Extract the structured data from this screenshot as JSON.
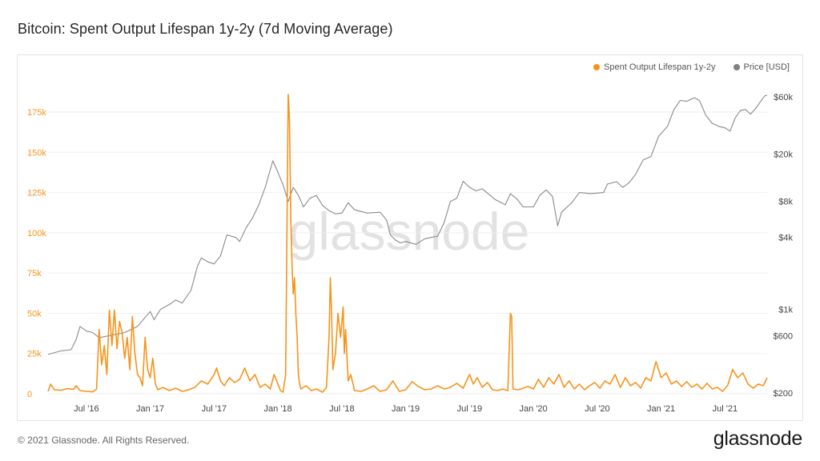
{
  "header": {
    "title": "Bitcoin: Spent Output Lifespan 1y-2y (7d Moving Average)"
  },
  "footer": {
    "copyright": "© 2021 Glassnode. All Rights Reserved.",
    "logo": "glassnode"
  },
  "watermark": "glassnode",
  "chart_data": {
    "type": "line",
    "title": "Bitcoin: Spent Output Lifespan 1y-2y (7d Moving Average)",
    "x_range": [
      2016.2,
      2021.83
    ],
    "x_ticks": [
      {
        "label": "Jul '16",
        "x": 2016.5
      },
      {
        "label": "Jan '17",
        "x": 2017.0
      },
      {
        "label": "Jul '17",
        "x": 2017.5
      },
      {
        "label": "Jan '18",
        "x": 2018.0
      },
      {
        "label": "Jul '18",
        "x": 2018.5
      },
      {
        "label": "Jan '19",
        "x": 2019.0
      },
      {
        "label": "Jul '19",
        "x": 2019.5
      },
      {
        "label": "Jan '20",
        "x": 2020.0
      },
      {
        "label": "Jul '20",
        "x": 2020.5
      },
      {
        "label": "Jan '21",
        "x": 2021.0
      },
      {
        "label": "Jul '21",
        "x": 2021.5
      }
    ],
    "left_axis": {
      "ylim": [
        0,
        175000
      ],
      "ticks": [
        {
          "label": "0",
          "v": 0
        },
        {
          "label": "25k",
          "v": 25000
        },
        {
          "label": "50k",
          "v": 50000
        },
        {
          "label": "75k",
          "v": 75000
        },
        {
          "label": "100k",
          "v": 100000
        },
        {
          "label": "125k",
          "v": 125000
        },
        {
          "label": "150k",
          "v": 150000
        },
        {
          "label": "175k",
          "v": 175000
        }
      ],
      "color": "#f7931a"
    },
    "right_axis": {
      "scale": "log",
      "ylim": [
        200,
        60000
      ],
      "ticks": [
        {
          "label": "$200",
          "v": 200
        },
        {
          "label": "$600",
          "v": 600
        },
        {
          "label": "$1k",
          "v": 1000
        },
        {
          "label": "$4k",
          "v": 4000
        },
        {
          "label": "$8k",
          "v": 8000
        },
        {
          "label": "$20k",
          "v": 20000
        },
        {
          "label": "$60k",
          "v": 60000
        }
      ],
      "color": "#555555"
    },
    "series": [
      {
        "name": "Spent Output Lifespan 1y-2y",
        "axis": "left",
        "color": "#f7931a",
        "points": [
          [
            2016.2,
            1500
          ],
          [
            2016.22,
            6000
          ],
          [
            2016.25,
            2500
          ],
          [
            2016.3,
            2200
          ],
          [
            2016.35,
            3200
          ],
          [
            2016.4,
            2800
          ],
          [
            2016.42,
            5000
          ],
          [
            2016.45,
            2000
          ],
          [
            2016.5,
            1500
          ],
          [
            2016.55,
            1200
          ],
          [
            2016.58,
            3000
          ],
          [
            2016.6,
            40000
          ],
          [
            2016.62,
            18000
          ],
          [
            2016.64,
            30000
          ],
          [
            2016.66,
            12000
          ],
          [
            2016.68,
            52000
          ],
          [
            2016.7,
            30000
          ],
          [
            2016.72,
            52000
          ],
          [
            2016.74,
            28000
          ],
          [
            2016.76,
            45000
          ],
          [
            2016.78,
            38000
          ],
          [
            2016.8,
            22000
          ],
          [
            2016.82,
            35000
          ],
          [
            2016.84,
            15000
          ],
          [
            2016.86,
            48000
          ],
          [
            2016.88,
            25000
          ],
          [
            2016.9,
            12000
          ],
          [
            2016.92,
            10000
          ],
          [
            2016.94,
            5000
          ],
          [
            2016.96,
            35000
          ],
          [
            2016.98,
            15000
          ],
          [
            2017.0,
            10000
          ],
          [
            2017.02,
            22000
          ],
          [
            2017.04,
            6000
          ],
          [
            2017.06,
            2500
          ],
          [
            2017.1,
            4000
          ],
          [
            2017.15,
            2000
          ],
          [
            2017.2,
            3500
          ],
          [
            2017.25,
            1500
          ],
          [
            2017.3,
            2500
          ],
          [
            2017.35,
            4000
          ],
          [
            2017.4,
            8000
          ],
          [
            2017.45,
            6000
          ],
          [
            2017.5,
            12000
          ],
          [
            2017.52,
            16000
          ],
          [
            2017.55,
            8000
          ],
          [
            2017.58,
            5000
          ],
          [
            2017.62,
            10000
          ],
          [
            2017.66,
            7000
          ],
          [
            2017.7,
            9000
          ],
          [
            2017.74,
            16000
          ],
          [
            2017.78,
            8000
          ],
          [
            2017.82,
            12000
          ],
          [
            2017.86,
            4000
          ],
          [
            2017.9,
            6000
          ],
          [
            2017.94,
            3000
          ],
          [
            2017.97,
            12000
          ],
          [
            2018.0,
            6000
          ],
          [
            2018.02,
            2000
          ],
          [
            2018.04,
            1000
          ],
          [
            2018.06,
            12000
          ],
          [
            2018.08,
            186000
          ],
          [
            2018.09,
            170000
          ],
          [
            2018.1,
            110000
          ],
          [
            2018.11,
            80000
          ],
          [
            2018.12,
            62000
          ],
          [
            2018.13,
            72000
          ],
          [
            2018.14,
            50000
          ],
          [
            2018.15,
            36000
          ],
          [
            2018.16,
            12000
          ],
          [
            2018.17,
            6000
          ],
          [
            2018.18,
            3000
          ],
          [
            2018.22,
            5000
          ],
          [
            2018.26,
            2000
          ],
          [
            2018.3,
            3000
          ],
          [
            2018.35,
            1000
          ],
          [
            2018.38,
            4000
          ],
          [
            2018.4,
            35000
          ],
          [
            2018.41,
            72000
          ],
          [
            2018.42,
            50000
          ],
          [
            2018.43,
            15000
          ],
          [
            2018.45,
            25000
          ],
          [
            2018.47,
            50000
          ],
          [
            2018.49,
            35000
          ],
          [
            2018.51,
            54000
          ],
          [
            2018.52,
            25000
          ],
          [
            2018.53,
            40000
          ],
          [
            2018.55,
            8000
          ],
          [
            2018.57,
            12000
          ],
          [
            2018.6,
            2000
          ],
          [
            2018.65,
            1500
          ],
          [
            2018.7,
            3000
          ],
          [
            2018.75,
            5000
          ],
          [
            2018.8,
            1500
          ],
          [
            2018.85,
            2500
          ],
          [
            2018.9,
            8000
          ],
          [
            2018.95,
            1500
          ],
          [
            2019.0,
            2500
          ],
          [
            2019.05,
            7500
          ],
          [
            2019.1,
            4500
          ],
          [
            2019.15,
            2500
          ],
          [
            2019.2,
            3000
          ],
          [
            2019.25,
            5000
          ],
          [
            2019.3,
            3000
          ],
          [
            2019.35,
            4000
          ],
          [
            2019.4,
            6500
          ],
          [
            2019.45,
            3500
          ],
          [
            2019.5,
            12000
          ],
          [
            2019.53,
            6000
          ],
          [
            2019.56,
            10000
          ],
          [
            2019.6,
            4000
          ],
          [
            2019.64,
            7000
          ],
          [
            2019.68,
            2500
          ],
          [
            2019.72,
            2000
          ],
          [
            2019.76,
            3000
          ],
          [
            2019.8,
            2000
          ],
          [
            2019.82,
            50000
          ],
          [
            2019.83,
            48000
          ],
          [
            2019.84,
            3000
          ],
          [
            2019.88,
            2500
          ],
          [
            2019.92,
            3500
          ],
          [
            2019.96,
            4500
          ],
          [
            2020.0,
            3000
          ],
          [
            2020.04,
            9000
          ],
          [
            2020.08,
            4000
          ],
          [
            2020.12,
            10000
          ],
          [
            2020.16,
            6000
          ],
          [
            2020.2,
            12000
          ],
          [
            2020.24,
            4000
          ],
          [
            2020.28,
            8000
          ],
          [
            2020.32,
            3000
          ],
          [
            2020.36,
            6000
          ],
          [
            2020.4,
            2500
          ],
          [
            2020.44,
            5000
          ],
          [
            2020.48,
            7000
          ],
          [
            2020.52,
            3500
          ],
          [
            2020.56,
            8000
          ],
          [
            2020.6,
            6000
          ],
          [
            2020.64,
            12000
          ],
          [
            2020.68,
            4000
          ],
          [
            2020.72,
            10000
          ],
          [
            2020.76,
            5000
          ],
          [
            2020.8,
            7000
          ],
          [
            2020.84,
            3500
          ],
          [
            2020.88,
            10000
          ],
          [
            2020.92,
            8000
          ],
          [
            2020.96,
            20000
          ],
          [
            2021.0,
            10000
          ],
          [
            2021.04,
            13000
          ],
          [
            2021.08,
            6000
          ],
          [
            2021.12,
            8000
          ],
          [
            2021.16,
            4500
          ],
          [
            2021.2,
            7500
          ],
          [
            2021.24,
            4000
          ],
          [
            2021.28,
            6000
          ],
          [
            2021.32,
            3000
          ],
          [
            2021.36,
            6500
          ],
          [
            2021.4,
            3000
          ],
          [
            2021.44,
            4000
          ],
          [
            2021.48,
            1500
          ],
          [
            2021.52,
            5000
          ],
          [
            2021.56,
            15000
          ],
          [
            2021.6,
            10000
          ],
          [
            2021.64,
            13000
          ],
          [
            2021.68,
            6000
          ],
          [
            2021.72,
            3500
          ],
          [
            2021.76,
            6000
          ],
          [
            2021.8,
            5000
          ],
          [
            2021.83,
            10000
          ]
        ]
      },
      {
        "name": "Price [USD]",
        "axis": "right",
        "color": "#8a8a8a",
        "points": [
          [
            2016.2,
            420
          ],
          [
            2016.3,
            450
          ],
          [
            2016.38,
            460
          ],
          [
            2016.42,
            560
          ],
          [
            2016.45,
            720
          ],
          [
            2016.5,
            660
          ],
          [
            2016.55,
            640
          ],
          [
            2016.6,
            580
          ],
          [
            2016.7,
            610
          ],
          [
            2016.8,
            640
          ],
          [
            2016.9,
            720
          ],
          [
            2017.0,
            960
          ],
          [
            2017.03,
            820
          ],
          [
            2017.08,
            1000
          ],
          [
            2017.15,
            1100
          ],
          [
            2017.2,
            1200
          ],
          [
            2017.25,
            1130
          ],
          [
            2017.32,
            1450
          ],
          [
            2017.37,
            2300
          ],
          [
            2017.4,
            2700
          ],
          [
            2017.45,
            2500
          ],
          [
            2017.5,
            2400
          ],
          [
            2017.55,
            2800
          ],
          [
            2017.6,
            4200
          ],
          [
            2017.67,
            4000
          ],
          [
            2017.7,
            3700
          ],
          [
            2017.75,
            4800
          ],
          [
            2017.8,
            5800
          ],
          [
            2017.85,
            7500
          ],
          [
            2017.9,
            10500
          ],
          [
            2017.96,
            17500
          ],
          [
            2018.0,
            14000
          ],
          [
            2018.04,
            11000
          ],
          [
            2018.08,
            8000
          ],
          [
            2018.12,
            10500
          ],
          [
            2018.16,
            9000
          ],
          [
            2018.2,
            7200
          ],
          [
            2018.25,
            8500
          ],
          [
            2018.3,
            9000
          ],
          [
            2018.35,
            7400
          ],
          [
            2018.4,
            6700
          ],
          [
            2018.45,
            6300
          ],
          [
            2018.5,
            6400
          ],
          [
            2018.55,
            7800
          ],
          [
            2018.6,
            6800
          ],
          [
            2018.7,
            6400
          ],
          [
            2018.8,
            6500
          ],
          [
            2018.85,
            5600
          ],
          [
            2018.88,
            4200
          ],
          [
            2018.92,
            3800
          ],
          [
            2018.96,
            3600
          ],
          [
            2019.0,
            3700
          ],
          [
            2019.08,
            3500
          ],
          [
            2019.15,
            3900
          ],
          [
            2019.25,
            4100
          ],
          [
            2019.3,
            5300
          ],
          [
            2019.35,
            8000
          ],
          [
            2019.4,
            8500
          ],
          [
            2019.45,
            11800
          ],
          [
            2019.5,
            10500
          ],
          [
            2019.55,
            9800
          ],
          [
            2019.6,
            10200
          ],
          [
            2019.7,
            8300
          ],
          [
            2019.78,
            7500
          ],
          [
            2019.82,
            9300
          ],
          [
            2019.87,
            8400
          ],
          [
            2019.92,
            7200
          ],
          [
            2020.0,
            7200
          ],
          [
            2020.05,
            9000
          ],
          [
            2020.1,
            10000
          ],
          [
            2020.15,
            8800
          ],
          [
            2020.19,
            5000
          ],
          [
            2020.22,
            6500
          ],
          [
            2020.3,
            7800
          ],
          [
            2020.36,
            9500
          ],
          [
            2020.45,
            9300
          ],
          [
            2020.55,
            9500
          ],
          [
            2020.58,
            11200
          ],
          [
            2020.65,
            11700
          ],
          [
            2020.7,
            10500
          ],
          [
            2020.75,
            11500
          ],
          [
            2020.8,
            13500
          ],
          [
            2020.86,
            17800
          ],
          [
            2020.92,
            19000
          ],
          [
            2020.98,
            28000
          ],
          [
            2021.05,
            34000
          ],
          [
            2021.1,
            47000
          ],
          [
            2021.15,
            56000
          ],
          [
            2021.2,
            55000
          ],
          [
            2021.26,
            59000
          ],
          [
            2021.3,
            56000
          ],
          [
            2021.35,
            42000
          ],
          [
            2021.4,
            36000
          ],
          [
            2021.45,
            34000
          ],
          [
            2021.5,
            33000
          ],
          [
            2021.54,
            31000
          ],
          [
            2021.58,
            40000
          ],
          [
            2021.62,
            46000
          ],
          [
            2021.66,
            47000
          ],
          [
            2021.7,
            43000
          ],
          [
            2021.74,
            48000
          ],
          [
            2021.78,
            55000
          ],
          [
            2021.81,
            61000
          ],
          [
            2021.83,
            62000
          ]
        ]
      }
    ]
  }
}
